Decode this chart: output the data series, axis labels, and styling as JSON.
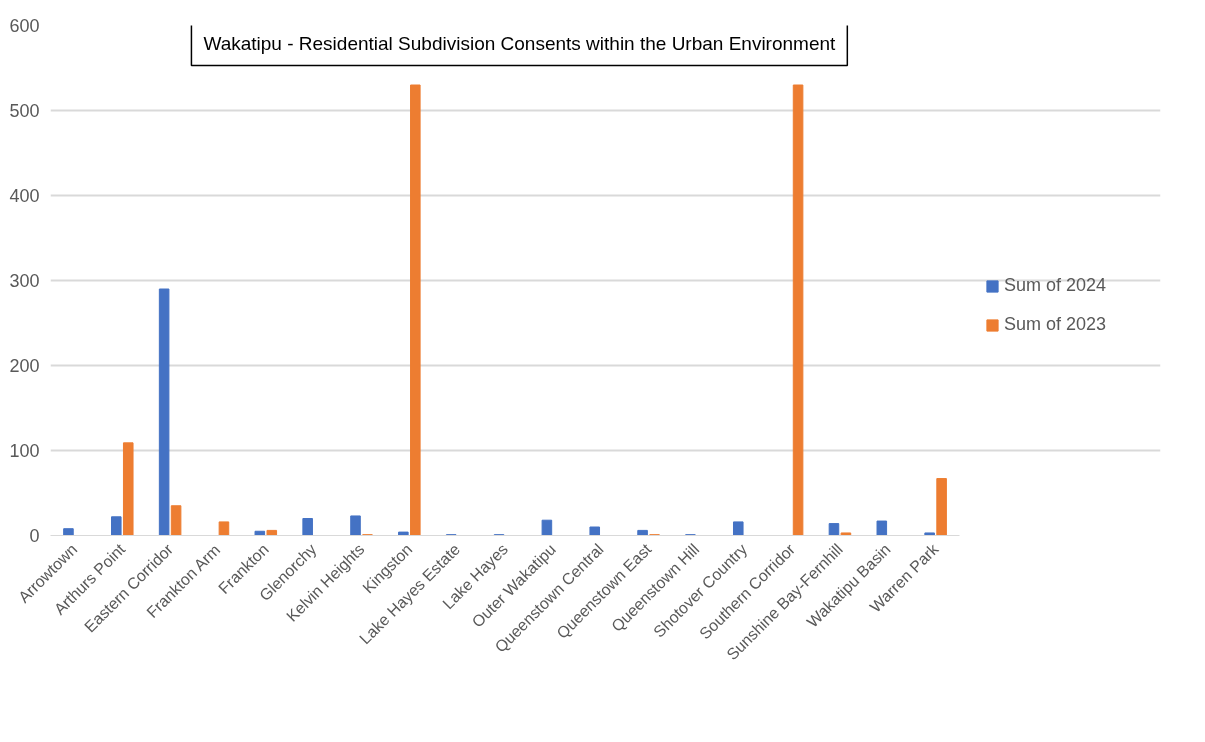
{
  "chart_data": {
    "type": "bar",
    "title": "Wakatipu - Residential Subdivision Consents within the Urban Environment",
    "categories": [
      "Arrowtown",
      "Arthurs Point",
      "Eastern Corridor",
      "Frankton Arm",
      "Frankton",
      "Glenorchy",
      "Kelvin Heights",
      "Kingston",
      "Lake Hayes Estate",
      "Lake Hayes",
      "Outer Wakatipu",
      "Queenstown Central",
      "Queenstown East",
      "Queenstown Hill",
      "Shotover Country",
      "Southern Corridor",
      "Sunshine Bay-Fernhill",
      "Wakatipu Basin",
      "Warren Park"
    ],
    "series": [
      {
        "name": "Sum of 2024",
        "color": "#4472c4",
        "values": [
          8,
          22,
          290,
          null,
          5,
          20,
          23,
          4,
          1,
          1,
          18,
          10,
          6,
          1,
          16,
          null,
          14,
          17,
          3
        ]
      },
      {
        "name": "Sum of 2023",
        "color": "#ed7d31",
        "values": [
          null,
          109,
          35,
          16,
          6,
          null,
          1,
          530,
          null,
          null,
          null,
          null,
          1,
          null,
          null,
          530,
          3,
          null,
          67
        ]
      }
    ],
    "ylim": [
      0,
      600
    ],
    "yticks": [
      0,
      100,
      200,
      300,
      400,
      500,
      600
    ],
    "grid": "y",
    "legend": "right"
  }
}
